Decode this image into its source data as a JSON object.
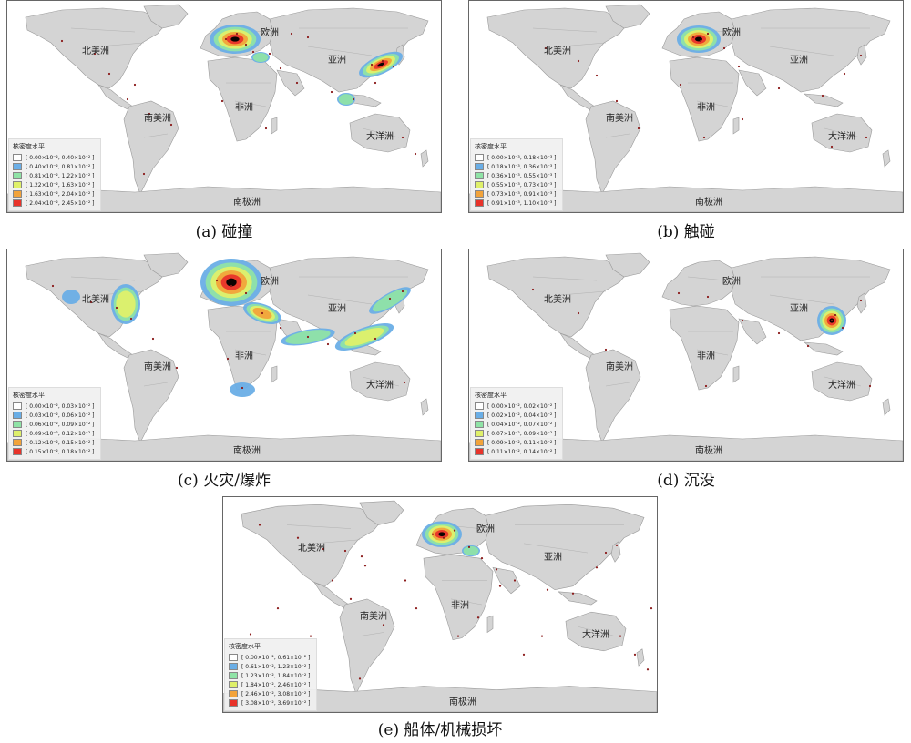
{
  "continent_labels": {
    "north_america": "北美洲",
    "south_america": "南美洲",
    "europe": "欧洲",
    "asia": "亚洲",
    "africa": "非洲",
    "oceania": "大洋洲",
    "antarctica": "南极洲"
  },
  "legend_title": "核密度水平",
  "legend_colors": [
    "#ffffff",
    "#6aaee6",
    "#8fe3a6",
    "#dff06a",
    "#f2a33a",
    "#e8332a"
  ],
  "panels": [
    {
      "caption": "(a) 碰撞",
      "legend": [
        "[ 0.00×10⁻², 0.40×10⁻² ]",
        "[ 0.40×10⁻², 0.81×10⁻² ]",
        "[ 0.81×10⁻², 1.22×10⁻² ]",
        "[ 1.22×10⁻², 1.63×10⁻² ]",
        "[ 1.63×10⁻², 2.04×10⁻² ]",
        "[ 2.04×10⁻², 2.45×10⁻² ]"
      ]
    },
    {
      "caption": "(b) 触碰",
      "legend": [
        "[ 0.00×10⁻³, 0.18×10⁻³ ]",
        "[ 0.18×10⁻³, 0.36×10⁻³ ]",
        "[ 0.36×10⁻³, 0.55×10⁻³ ]",
        "[ 0.55×10⁻³, 0.73×10⁻³ ]",
        "[ 0.73×10⁻³, 0.91×10⁻³ ]",
        "[ 0.91×10⁻³, 1.10×10⁻³ ]"
      ]
    },
    {
      "caption": "(c) 火灾/爆炸",
      "legend": [
        "[ 0.00×10⁻², 0.03×10⁻² ]",
        "[ 0.03×10⁻², 0.06×10⁻² ]",
        "[ 0.06×10⁻², 0.09×10⁻² ]",
        "[ 0.09×10⁻², 0.12×10⁻² ]",
        "[ 0.12×10⁻², 0.15×10⁻² ]",
        "[ 0.15×10⁻², 0.18×10⁻² ]"
      ]
    },
    {
      "caption": "(d) 沉没",
      "legend": [
        "[ 0.00×10⁻², 0.02×10⁻² ]",
        "[ 0.02×10⁻², 0.04×10⁻² ]",
        "[ 0.04×10⁻², 0.07×10⁻² ]",
        "[ 0.07×10⁻², 0.09×10⁻² ]",
        "[ 0.09×10⁻², 0.11×10⁻² ]",
        "[ 0.11×10⁻², 0.14×10⁻² ]"
      ]
    },
    {
      "caption": "(e) 船体/机械损坏",
      "legend": [
        "[ 0.00×10⁻², 0.61×10⁻² ]",
        "[ 0.61×10⁻², 1.23×10⁻² ]",
        "[ 1.23×10⁻², 1.84×10⁻² ]",
        "[ 1.84×10⁻², 2.46×10⁻² ]",
        "[ 2.46×10⁻², 3.08×10⁻² ]",
        "[ 3.08×10⁻², 3.69×10⁻² ]"
      ]
    }
  ]
}
